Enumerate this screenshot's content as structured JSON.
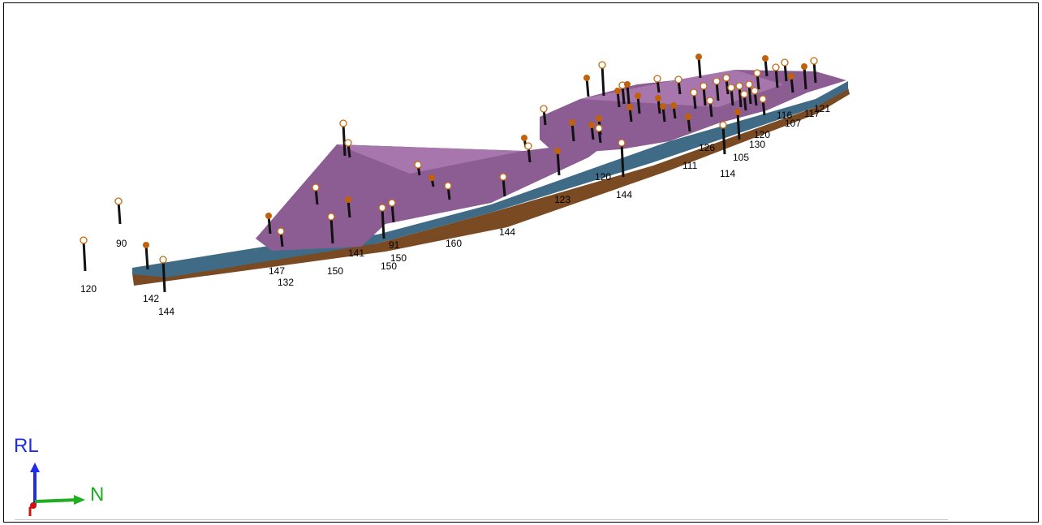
{
  "viewer": {
    "axis_vertical_label": "RL",
    "axis_horizontal_label": "N",
    "colors": {
      "top_surface": "#8b5d92",
      "top_surface_light": "#a676ad",
      "upper_layer": "#3f6b86",
      "lower_layer": "#7a4a22",
      "collar_open": "#c46a12",
      "collar_filled": "#c2610c",
      "drillhole": "#111111",
      "axis_up": "#1f2ee6",
      "axis_north": "#1fae1f",
      "axis_east": "#d11010"
    }
  },
  "depth_labels": [
    "120",
    "90",
    "142",
    "144",
    "147",
    "132",
    "150",
    "141",
    "150",
    "150",
    "91",
    "160",
    "144",
    "123",
    "120",
    "144",
    "111",
    "114",
    "105",
    "130",
    "120",
    "107",
    "117",
    "121",
    "116",
    "126"
  ]
}
